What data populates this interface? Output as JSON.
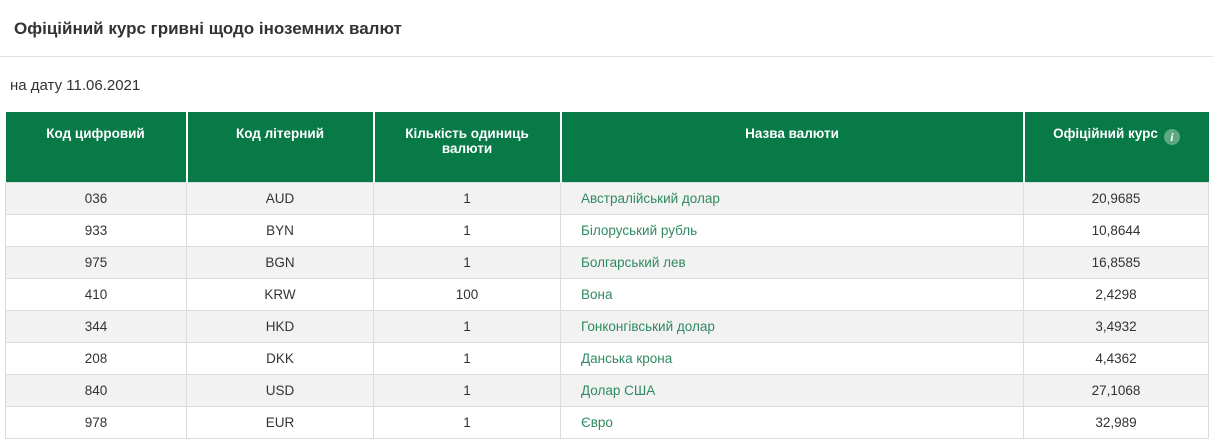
{
  "page": {
    "title": "Офіційний курс гривні щодо іноземних валют",
    "date_label": "на дату 11.06.2021"
  },
  "theme": {
    "header-green": "#077a48",
    "link-green": "#2f8a60",
    "row-alt": "#f2f2f2",
    "info-bg": "#5ca981"
  },
  "table": {
    "headers": {
      "num_code": "Код цифровий",
      "letter_code": "Код літерний",
      "units": "Кількість одиниць валюти",
      "name": "Назва валюти",
      "rate": "Офіційний курс"
    },
    "info_icon_glyph": "i",
    "rows": [
      {
        "num_code": "036",
        "letter_code": "AUD",
        "units": "1",
        "name": "Австралійський долар",
        "rate": "20,9685"
      },
      {
        "num_code": "933",
        "letter_code": "BYN",
        "units": "1",
        "name": "Білоруський рубль",
        "rate": "10,8644"
      },
      {
        "num_code": "975",
        "letter_code": "BGN",
        "units": "1",
        "name": "Болгарський лев",
        "rate": "16,8585"
      },
      {
        "num_code": "410",
        "letter_code": "KRW",
        "units": "100",
        "name": "Вона",
        "rate": "2,4298"
      },
      {
        "num_code": "344",
        "letter_code": "HKD",
        "units": "1",
        "name": "Гонконгівський долар",
        "rate": "3,4932"
      },
      {
        "num_code": "208",
        "letter_code": "DKK",
        "units": "1",
        "name": "Данська крона",
        "rate": "4,4362"
      },
      {
        "num_code": "840",
        "letter_code": "USD",
        "units": "1",
        "name": "Долар США",
        "rate": "27,1068"
      },
      {
        "num_code": "978",
        "letter_code": "EUR",
        "units": "1",
        "name": "Євро",
        "rate": "32,989"
      }
    ]
  }
}
